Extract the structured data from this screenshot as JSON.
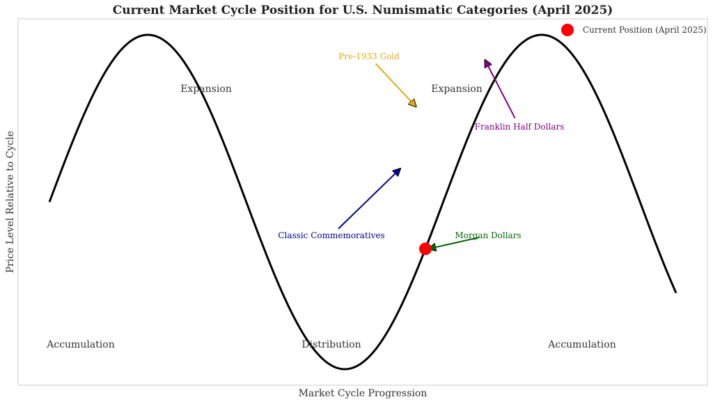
{
  "chart_data": {
    "type": "line",
    "title": "Current Market Cycle Position for U.S. Numismatic Categories (April 2025)",
    "xlabel": "Market Cycle Progression",
    "ylabel": "Price Level Relative to Cycle",
    "xlim": [
      0,
      10
    ],
    "ylim": [
      -1.2,
      1.2
    ],
    "curve": {
      "function": "sin",
      "x_start": 0,
      "x_end": 10,
      "color": "#000000"
    },
    "phase_labels": [
      {
        "text": "Accumulation",
        "x": 0.5,
        "y": -0.85
      },
      {
        "text": "Expansion",
        "x": 2.5,
        "y": 0.68
      },
      {
        "text": "Distribution",
        "x": 4.5,
        "y": -0.85
      },
      {
        "text": "Expansion",
        "x": 6.5,
        "y": 0.68
      },
      {
        "text": "Accumulation",
        "x": 8.5,
        "y": -0.85
      }
    ],
    "current_position": {
      "x": 6.0,
      "y": -0.28,
      "color": "#ff0000"
    },
    "legend": {
      "label": "Current Position (April 2025)",
      "placement": "top-right",
      "color": "#ff0000"
    },
    "annotations": [
      {
        "text": "Pre-1933 Gold",
        "color": "#e6a817",
        "text_x": 5.1,
        "text_y": 0.87,
        "arrow_x": 5.85,
        "arrow_y": 0.57
      },
      {
        "text": "Franklin Half Dollars",
        "color": "#800080",
        "text_x": 7.5,
        "text_y": 0.45,
        "arrow_x": 6.95,
        "arrow_y": 0.85
      },
      {
        "text": "Classic Commemoratives",
        "color": "#00008b",
        "text_x": 4.5,
        "text_y": -0.2,
        "arrow_x": 5.6,
        "arrow_y": 0.2
      },
      {
        "text": "Morgan Dollars",
        "color": "#006400",
        "text_x": 7.0,
        "text_y": -0.2,
        "arrow_x": 6.05,
        "arrow_y": -0.28
      }
    ]
  }
}
